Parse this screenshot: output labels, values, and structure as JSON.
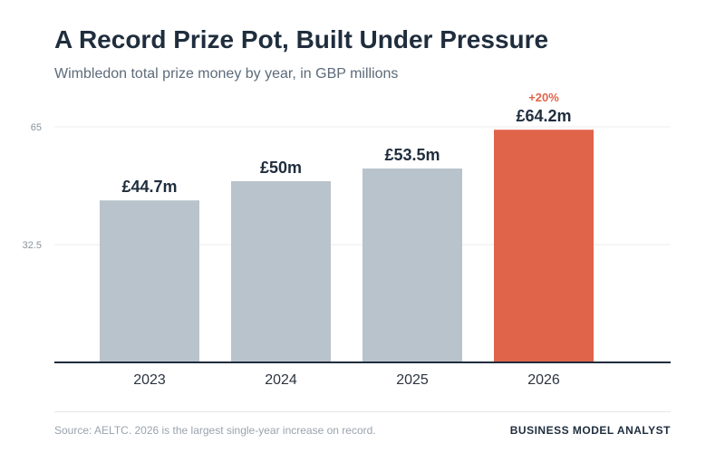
{
  "header": {
    "title": "A Record Prize Pot, Built Under Pressure",
    "subtitle": "Wimbledon total prize money by year, in GBP millions"
  },
  "footer": {
    "source": "Source: AELTC. 2026 is the largest single-year increase on record.",
    "brand": "BUSINESS MODEL ANALYST"
  },
  "colors": {
    "bar_default": "#b9c3cb",
    "bar_highlight": "#e0644a",
    "text_dark": "#1f2d3d",
    "gridline": "#ececec",
    "axis_line": "#1f2d3d",
    "tick_label": "#8a939c"
  },
  "chart_data": {
    "type": "bar",
    "categories": [
      "2023",
      "2024",
      "2025",
      "2026"
    ],
    "values": [
      44.7,
      50,
      53.5,
      64.2
    ],
    "data_labels": [
      "£44.7m",
      "£50m",
      "£53.5m",
      "£64.2m"
    ],
    "highlight_index": 3,
    "highlight_annotation": "+20%",
    "ylim": [
      0,
      65
    ],
    "yticks": [
      32.5,
      65
    ],
    "ytick_labels": [
      "32.5",
      "65"
    ],
    "grid": true,
    "legend": "none"
  }
}
